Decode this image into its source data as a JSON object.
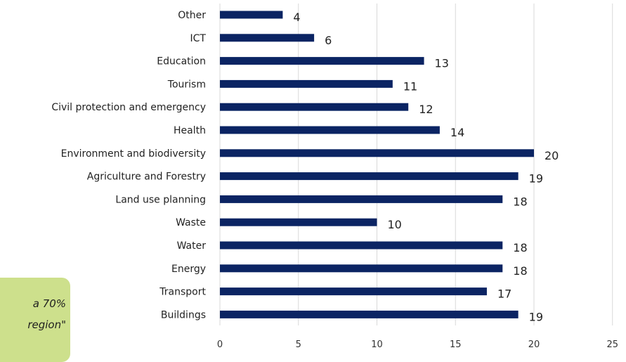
{
  "chart_data": {
    "type": "bar",
    "orientation": "horizontal",
    "categories": [
      "Other",
      "ICT",
      "Education",
      "Tourism",
      "Civil protection and emergency",
      "Health",
      "Environment and biodiversity",
      "Agriculture and Forestry",
      "Land use planning",
      "Waste",
      "Water",
      "Energy",
      "Transport",
      "Buildings"
    ],
    "values": [
      4,
      6,
      13,
      11,
      12,
      14,
      20,
      19,
      18,
      10,
      18,
      18,
      17,
      19
    ],
    "xlim": [
      0,
      25
    ],
    "xticks": [
      0,
      5,
      10,
      15,
      20,
      25
    ],
    "grid": true,
    "bar_color": "#0b2463",
    "grid_color": "#d9d9d9",
    "data_labels": true
  },
  "callout": {
    "line1": "a  70%",
    "line2": "region\"",
    "background": "#cde08c"
  }
}
